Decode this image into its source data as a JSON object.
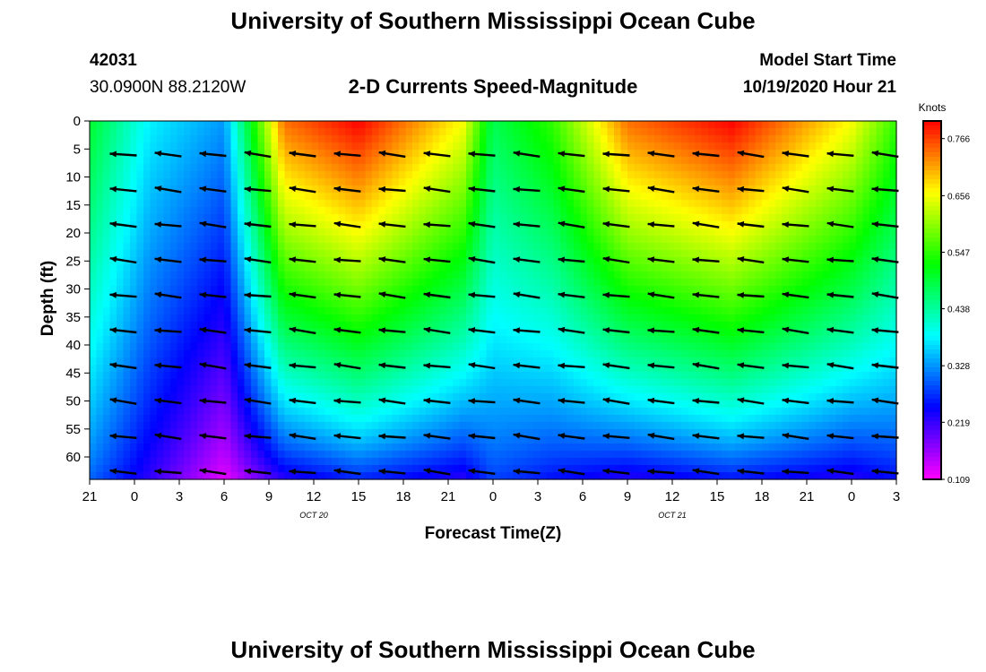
{
  "page": {
    "title_top": "University of Southern Mississippi Ocean Cube",
    "title_bottom": "University of Southern Mississippi Ocean Cube",
    "station_id": "42031",
    "coordinates": "30.0900N 88.2120W",
    "model_start_label": "Model Start Time",
    "model_start_value": "10/19/2020 Hour 21"
  },
  "chart_data": {
    "type": "heatmap",
    "title": "2-D Currents Speed-Magnitude",
    "xlabel": "Forecast Time(Z)",
    "ylabel": "Depth (ft)",
    "x_ticks": [
      "21",
      "0",
      "3",
      "6",
      "9",
      "12",
      "15",
      "18",
      "21",
      "0",
      "3",
      "6",
      "9",
      "12",
      "15",
      "18",
      "21",
      "0",
      "3"
    ],
    "date_labels": [
      {
        "label": "OCT 20",
        "at_tick": 5
      },
      {
        "label": "OCT 21",
        "at_tick": 13
      }
    ],
    "x_range_hours": [
      0,
      54
    ],
    "y_ticks": [
      "0",
      "5",
      "10",
      "15",
      "20",
      "25",
      "30",
      "35",
      "40",
      "45",
      "50",
      "55",
      "60"
    ],
    "y_range_ft": [
      0,
      64
    ],
    "colorbar": {
      "title": "Knots",
      "ticks": [
        "0.766",
        "0.656",
        "0.547",
        "0.438",
        "0.328",
        "0.219",
        "0.109"
      ],
      "range": [
        0.109,
        0.8
      ]
    },
    "vector_arrow_direction": "westward (pointing left)",
    "speed_profile_knots": [
      {
        "hour": 0,
        "surface": 0.5,
        "bottom": 0.3
      },
      {
        "hour": 4,
        "surface": 0.38,
        "bottom": 0.22
      },
      {
        "hour": 9,
        "surface": 0.33,
        "bottom": 0.12
      },
      {
        "hour": 13,
        "surface": 0.74,
        "bottom": 0.22
      },
      {
        "hour": 18,
        "surface": 0.8,
        "bottom": 0.26
      },
      {
        "hour": 25,
        "surface": 0.66,
        "bottom": 0.22
      },
      {
        "hour": 27,
        "surface": 0.48,
        "bottom": 0.28
      },
      {
        "hour": 31,
        "surface": 0.55,
        "bottom": 0.25
      },
      {
        "hour": 36,
        "surface": 0.74,
        "bottom": 0.22
      },
      {
        "hour": 43,
        "surface": 0.8,
        "bottom": 0.25
      },
      {
        "hour": 51,
        "surface": 0.66,
        "bottom": 0.22
      },
      {
        "hour": 54,
        "surface": 0.55,
        "bottom": 0.25
      }
    ]
  },
  "colors": {
    "background": "#ffffff",
    "text": "#000000"
  }
}
